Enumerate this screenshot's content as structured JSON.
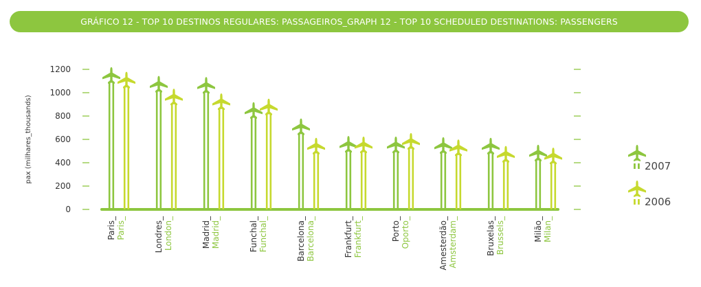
{
  "title": "GRÁFICO 12 - TOP 10 DESTINOS REGULARES: PASSAGEIROS_GRAPH 12 - TOP 10 SCHEDULED DESTINATIONS: PASSENGERS",
  "colors": {
    "title_bg": "#8dc63f",
    "series_2007": "#8dc63f",
    "series_2006": "#c6d92e",
    "axis": "#8dc63f",
    "text": "#333333"
  },
  "chart_data": {
    "type": "bar",
    "title": "GRÁFICO 12 - TOP 10 DESTINOS REGULARES: PASSAGEIROS_GRAPH 12 - TOP 10 SCHEDULED DESTINATIONS: PASSENGERS",
    "ylabel": "pax (milhares_thousands)",
    "xlabel": "",
    "ylim": [
      0,
      1200
    ],
    "yticks": [
      0,
      200,
      400,
      600,
      800,
      1000,
      1200
    ],
    "categories_pt": [
      "Paris_",
      "Londres_",
      "Madrid_",
      "Funchal_",
      "Barcelona_",
      "Frankfurt_",
      "Porto_",
      "Amesterdão_",
      "Bruxelas_",
      "Milão_"
    ],
    "categories_en": [
      "Paris_",
      "London_",
      "Madrid_",
      "Funchal_",
      "Barcelona_",
      "Frankfurt_",
      "Oporto_",
      "Amsterdam_",
      "Brussels_",
      "Milan_"
    ],
    "series": [
      {
        "name": "2007",
        "values": [
          1095,
          1020,
          1010,
          795,
          655,
          505,
          500,
          495,
          490,
          430
        ]
      },
      {
        "name": "2006",
        "values": [
          1055,
          910,
          870,
          825,
          490,
          500,
          530,
          475,
          420,
          405
        ]
      }
    ],
    "grid": false,
    "legend_position": "right"
  }
}
